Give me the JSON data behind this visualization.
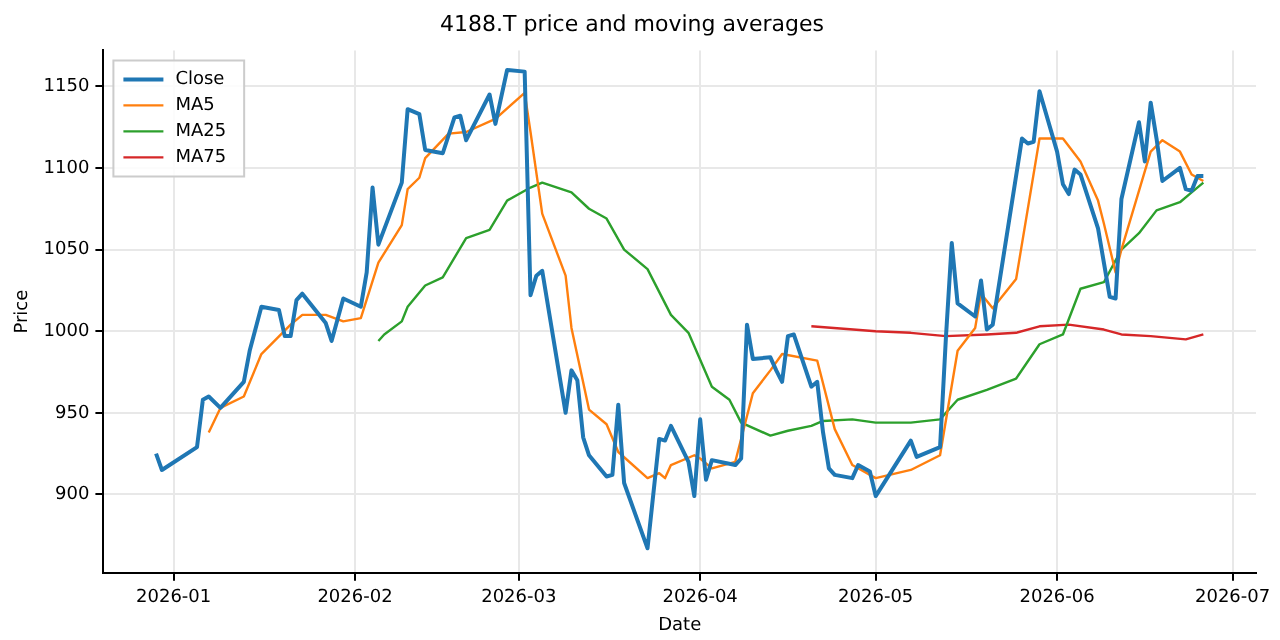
{
  "chart_data": {
    "type": "line",
    "title": "4188.T price and moving averages",
    "xlabel": "Date",
    "ylabel": "Price",
    "xlim": [
      "2025-12-20",
      "2026-07-05"
    ],
    "ylim": [
      852,
      1172
    ],
    "xticks": [
      {
        "value": "2026-01-01",
        "label": "2026-01"
      },
      {
        "value": "2026-02-01",
        "label": "2026-02"
      },
      {
        "value": "2026-03-01",
        "label": "2026-03"
      },
      {
        "value": "2026-04-01",
        "label": "2026-04"
      },
      {
        "value": "2026-05-01",
        "label": "2026-05"
      },
      {
        "value": "2026-06-01",
        "label": "2026-06"
      },
      {
        "value": "2026-07-01",
        "label": "2026-07"
      }
    ],
    "yticks": [
      900,
      950,
      1000,
      1050,
      1100,
      1150
    ],
    "grid": true,
    "legend": "top left",
    "marker": "none",
    "line_style": "solid",
    "series": [
      {
        "name": "Close",
        "color": "#1f77b4",
        "x": [
          "2025-12-29",
          "2025-12-30",
          "2026-01-05",
          "2026-01-06",
          "2026-01-07",
          "2026-01-09",
          "2026-01-13",
          "2026-01-14",
          "2026-01-16",
          "2026-01-19",
          "2026-01-20",
          "2026-01-21",
          "2026-01-22",
          "2026-01-23",
          "2026-01-27",
          "2026-01-28",
          "2026-01-30",
          "2026-02-02",
          "2026-02-03",
          "2026-02-04",
          "2026-02-05",
          "2026-02-09",
          "2026-02-10",
          "2026-02-12",
          "2026-02-13",
          "2026-02-16",
          "2026-02-18",
          "2026-02-19",
          "2026-02-20",
          "2026-02-24",
          "2026-02-25",
          "2026-02-27",
          "2026-03-02",
          "2026-03-03",
          "2026-03-04",
          "2026-03-05",
          "2026-03-09",
          "2026-03-10",
          "2026-03-11",
          "2026-03-12",
          "2026-03-13",
          "2026-03-16",
          "2026-03-17",
          "2026-03-18",
          "2026-03-19",
          "2026-03-23",
          "2026-03-25",
          "2026-03-26",
          "2026-03-27",
          "2026-03-30",
          "2026-03-31",
          "2026-04-01",
          "2026-04-02",
          "2026-04-03",
          "2026-04-07",
          "2026-04-08",
          "2026-04-09",
          "2026-04-10",
          "2026-04-13",
          "2026-04-14",
          "2026-04-15",
          "2026-04-16",
          "2026-04-17",
          "2026-04-20",
          "2026-04-21",
          "2026-04-22",
          "2026-04-23",
          "2026-04-24",
          "2026-04-27",
          "2026-04-28",
          "2026-04-30",
          "2026-05-01",
          "2026-05-07",
          "2026-05-08",
          "2026-05-12",
          "2026-05-13",
          "2026-05-14",
          "2026-05-15",
          "2026-05-18",
          "2026-05-19",
          "2026-05-20",
          "2026-05-21",
          "2026-05-26",
          "2026-05-27",
          "2026-05-28",
          "2026-05-29",
          "2026-06-01",
          "2026-06-02",
          "2026-06-03",
          "2026-06-04",
          "2026-06-05",
          "2026-06-08",
          "2026-06-09",
          "2026-06-10",
          "2026-06-11",
          "2026-06-12",
          "2026-06-15",
          "2026-06-16",
          "2026-06-17",
          "2026-06-18",
          "2026-06-19",
          "2026-06-22",
          "2026-06-23",
          "2026-06-24",
          "2026-06-25",
          "2026-06-26"
        ],
        "values": [
          925,
          915,
          929,
          958,
          960,
          953,
          969,
          988,
          1015,
          1013,
          997,
          997,
          1019,
          1023,
          1005,
          994,
          1020,
          1015,
          1036,
          1088,
          1053,
          1091,
          1136,
          1133,
          1111,
          1109,
          1131,
          1132,
          1117,
          1145,
          1127,
          1160,
          1159,
          1022,
          1034,
          1037,
          950,
          976,
          970,
          935,
          924,
          911,
          912,
          955,
          907,
          867,
          934,
          933,
          942,
          920,
          899,
          946,
          909,
          921,
          918,
          922,
          1004,
          983,
          984,
          976,
          969,
          997,
          998,
          966,
          969,
          938,
          916,
          912,
          910,
          918,
          914,
          899,
          933,
          923,
          929,
          996,
          1054,
          1017,
          1009,
          1031,
          1001,
          1004,
          1118,
          1115,
          1116,
          1147,
          1110,
          1090,
          1084,
          1099,
          1096,
          1063,
          1042,
          1021,
          1020,
          1081,
          1128,
          1104,
          1140,
          1118,
          1092,
          1100,
          1087,
          1086,
          1095,
          1095
        ]
      },
      {
        "name": "MA5",
        "color": "#ff7f0e",
        "x": [
          "2026-01-07",
          "2026-01-09",
          "2026-01-13",
          "2026-01-16",
          "2026-01-21",
          "2026-01-23",
          "2026-01-27",
          "2026-01-30",
          "2026-02-02",
          "2026-02-05",
          "2026-02-09",
          "2026-02-10",
          "2026-02-12",
          "2026-02-13",
          "2026-02-17",
          "2026-02-20",
          "2026-02-25",
          "2026-03-02",
          "2026-03-03",
          "2026-03-05",
          "2026-03-09",
          "2026-03-10",
          "2026-03-13",
          "2026-03-16",
          "2026-03-18",
          "2026-03-23",
          "2026-03-25",
          "2026-03-26",
          "2026-03-27",
          "2026-03-31",
          "2026-04-01",
          "2026-04-03",
          "2026-04-07",
          "2026-04-10",
          "2026-04-13",
          "2026-04-15",
          "2026-04-21",
          "2026-04-24",
          "2026-04-27",
          "2026-05-01",
          "2026-05-07",
          "2026-05-12",
          "2026-05-15",
          "2026-05-18",
          "2026-05-19",
          "2026-05-21",
          "2026-05-25",
          "2026-05-29",
          "2026-06-02",
          "2026-06-05",
          "2026-06-08",
          "2026-06-09",
          "2026-06-11",
          "2026-06-12",
          "2026-06-17",
          "2026-06-19",
          "2026-06-22",
          "2026-06-24",
          "2026-06-26"
        ],
        "values": [
          938,
          953,
          960,
          986,
          1004,
          1010,
          1010,
          1006,
          1008,
          1042,
          1065,
          1087,
          1094,
          1106,
          1121,
          1122,
          1130,
          1146,
          1122,
          1072,
          1034,
          1002,
          952,
          943,
          926,
          910,
          913,
          910,
          918,
          924,
          922,
          916,
          920,
          962,
          976,
          986,
          982,
          940,
          918,
          910,
          915,
          924,
          988,
          1002,
          1023,
          1014,
          1032,
          1118,
          1118,
          1104,
          1080,
          1066,
          1036,
          1050,
          1110,
          1117,
          1110,
          1096,
          1092
        ]
      },
      {
        "name": "MA25",
        "color": "#2ca02c",
        "x": [
          "2026-02-05",
          "2026-02-06",
          "2026-02-09",
          "2026-02-10",
          "2026-02-13",
          "2026-02-16",
          "2026-02-20",
          "2026-02-24",
          "2026-02-27",
          "2026-03-03",
          "2026-03-05",
          "2026-03-10",
          "2026-03-13",
          "2026-03-16",
          "2026-03-19",
          "2026-03-23",
          "2026-03-27",
          "2026-03-30",
          "2026-04-03",
          "2026-04-06",
          "2026-04-08",
          "2026-04-13",
          "2026-04-16",
          "2026-04-20",
          "2026-04-22",
          "2026-04-27",
          "2026-05-01",
          "2026-05-07",
          "2026-05-12",
          "2026-05-15",
          "2026-05-20",
          "2026-05-25",
          "2026-05-29",
          "2026-06-02",
          "2026-06-05",
          "2026-06-09",
          "2026-06-12",
          "2026-06-15",
          "2026-06-18",
          "2026-06-22",
          "2026-06-24",
          "2026-06-26"
        ],
        "values": [
          994,
          998,
          1006,
          1015,
          1028,
          1033,
          1057,
          1062,
          1080,
          1088,
          1091,
          1085,
          1075,
          1069,
          1050,
          1038,
          1010,
          999,
          966,
          958,
          944,
          936,
          939,
          942,
          945,
          946,
          944,
          944,
          946,
          958,
          964,
          971,
          992,
          998,
          1026,
          1030,
          1050,
          1060,
          1074,
          1079,
          1085,
          1091
        ]
      },
      {
        "name": "MA75",
        "color": "#d62728",
        "x": [
          "2026-04-20",
          "2026-05-01",
          "2026-05-07",
          "2026-05-13",
          "2026-05-20",
          "2026-05-25",
          "2026-05-29",
          "2026-06-03",
          "2026-06-09",
          "2026-06-12",
          "2026-06-17",
          "2026-06-23",
          "2026-06-26"
        ],
        "values": [
          1003,
          1000,
          999,
          997,
          998,
          999,
          1003,
          1004,
          1001,
          998,
          997,
          995,
          998
        ]
      }
    ]
  }
}
